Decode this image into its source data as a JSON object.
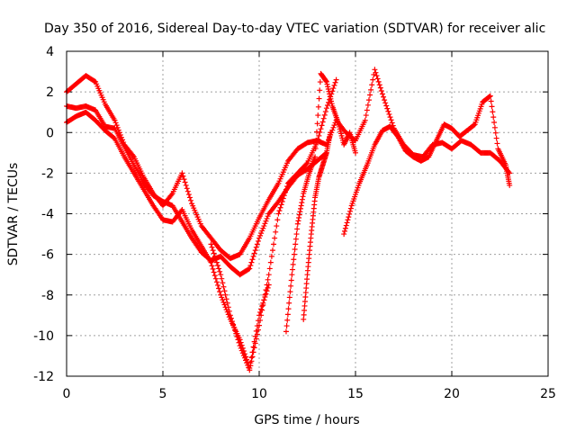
{
  "chart_data": {
    "type": "scatter",
    "title": "Day 350 of 2016, Sidereal Day-to-day VTEC variation (SDTVAR) for receiver alic",
    "xlabel": "GPS time / hours",
    "ylabel": "SDTVAR / TECUs",
    "xlim": [
      0,
      25
    ],
    "ylim": [
      -12,
      4
    ],
    "xticks": [
      "0",
      "5",
      "10",
      "15",
      "20",
      "25"
    ],
    "yticks": [
      "4",
      "2",
      "0",
      "-2",
      "-4",
      "-6",
      "-8",
      "-10",
      "-12"
    ],
    "grid": true,
    "legend": "none",
    "marker": "plus",
    "color": "#ff0000",
    "series": [
      {
        "x": [
          0.0,
          0.5,
          1.0,
          1.5,
          2.0,
          2.5,
          3.0,
          3.5,
          4.0,
          4.5,
          5.0,
          5.5,
          6.0,
          6.5,
          7.0,
          7.5,
          8.0,
          8.5,
          9.0,
          9.5,
          10.0,
          10.5,
          11.0,
          11.5,
          12.0,
          12.5,
          13.0,
          13.5,
          14.0,
          14.5,
          15.0,
          15.5,
          16.0,
          16.5,
          17.0,
          17.5,
          18.0,
          18.5,
          19.0,
          19.5,
          20.0,
          20.5,
          21.0,
          21.5,
          22.0,
          22.5,
          23.0
        ],
        "y": [
          2.0,
          2.4,
          2.8,
          2.5,
          1.4,
          0.6,
          -0.6,
          -1.2,
          -2.2,
          -3.0,
          -3.6,
          -3.0,
          -2.0,
          -3.5,
          -4.6,
          -5.2,
          -5.8,
          -6.2,
          -6.0,
          -5.2,
          -4.2,
          -3.3,
          -2.5,
          -1.4,
          -0.8,
          -0.5,
          -0.4,
          -0.6,
          0.6,
          0.0,
          -0.4,
          0.6,
          3.1,
          1.6,
          0.2,
          -0.6,
          -1.1,
          -1.2,
          -0.6,
          -0.5,
          -0.8,
          -0.4,
          -0.6,
          -1.0,
          -1.0,
          -1.4,
          -2.0
        ]
      },
      {
        "x": [
          0.0,
          0.5,
          1.0,
          1.5,
          2.0,
          2.5,
          3.0,
          3.5,
          4.0,
          4.5,
          5.0,
          5.5,
          6.0,
          6.5,
          7.0,
          7.5,
          8.0,
          8.5,
          9.0,
          9.5,
          10.0,
          10.5,
          11.0,
          11.5,
          12.0,
          12.5,
          13.0,
          13.5
        ],
        "y": [
          1.3,
          1.2,
          1.3,
          1.1,
          0.3,
          0.2,
          -0.7,
          -1.6,
          -2.5,
          -3.1,
          -3.4,
          -3.6,
          -4.4,
          -5.2,
          -5.9,
          -6.3,
          -6.1,
          -6.6,
          -7.0,
          -6.7,
          -5.2,
          -4.0,
          -3.4,
          -2.7,
          -2.1,
          -1.8,
          -1.4,
          -1.0
        ]
      },
      {
        "x": [
          0.0,
          0.5,
          1.0,
          1.5,
          2.0,
          2.5,
          3.0,
          3.5,
          4.0,
          4.5,
          5.0,
          5.5,
          6.0,
          6.5,
          7.0,
          7.5,
          8.0,
          8.5,
          9.0,
          9.5,
          10.0,
          10.5
        ],
        "y": [
          0.5,
          0.8,
          1.0,
          0.6,
          0.1,
          -0.3,
          -1.2,
          -2.0,
          -2.8,
          -3.6,
          -4.3,
          -4.4,
          -3.8,
          -4.8,
          -5.6,
          -6.4,
          -8.0,
          -9.2,
          -10.2,
          -11.6,
          -9.0,
          -7.5
        ]
      },
      {
        "x": [
          7.5,
          8.0,
          8.5,
          9.0,
          9.5,
          10.0,
          10.5,
          11.0,
          11.5,
          12.0,
          12.5,
          13.0,
          13.5,
          14.0
        ],
        "y": [
          -5.5,
          -7.0,
          -9.0,
          -10.5,
          -11.7,
          -9.5,
          -7.0,
          -4.0,
          -2.5,
          -2.0,
          -1.5,
          -0.5,
          1.2,
          2.6
        ]
      },
      {
        "x": [
          11.4,
          11.7,
          12.0,
          12.3,
          12.6,
          12.9,
          13.2,
          13.5,
          13.8,
          14.1,
          14.4,
          14.7,
          15.0
        ],
        "y": [
          -9.8,
          -7.0,
          -4.5,
          -3.0,
          -2.0,
          -1.2,
          2.9,
          2.5,
          1.3,
          0.5,
          -0.6,
          0.0,
          -1.0
        ]
      },
      {
        "x": [
          12.3,
          12.5,
          12.7,
          12.9,
          13.1,
          13.3,
          13.5,
          13.7
        ],
        "y": [
          -9.2,
          -7.0,
          -5.0,
          -3.2,
          -2.2,
          -1.6,
          -1.0,
          0.0
        ]
      },
      {
        "x": [
          14.4,
          14.8,
          15.2,
          15.6,
          16.0,
          16.4,
          16.8,
          17.2,
          17.6,
          18.0,
          18.4,
          18.8,
          19.2,
          19.6,
          20.0,
          20.4,
          20.8,
          21.2,
          21.6,
          22.0,
          22.4,
          22.8,
          23.0
        ],
        "y": [
          -5.0,
          -3.6,
          -2.5,
          -1.6,
          -0.6,
          0.1,
          0.3,
          -0.2,
          -0.9,
          -1.2,
          -1.4,
          -1.2,
          -0.4,
          0.4,
          0.2,
          -0.2,
          0.1,
          0.4,
          1.5,
          1.8,
          -0.8,
          -1.6,
          -2.6
        ]
      }
    ]
  }
}
